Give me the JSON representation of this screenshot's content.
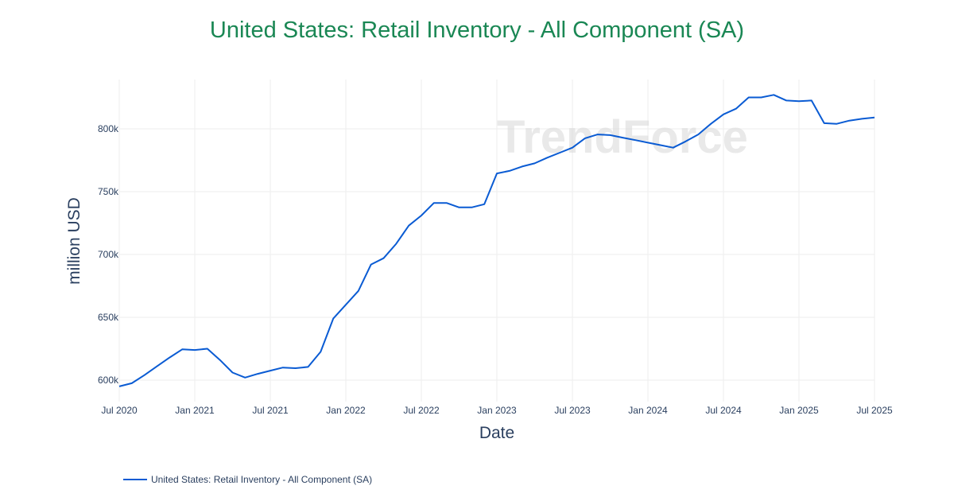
{
  "title": "United States: Retail Inventory - All Component (SA)",
  "y_axis_title": "million USD",
  "x_axis_title": "Date",
  "watermark": "TrendForce",
  "legend": {
    "label": "United States: Retail Inventory - All Component (SA)",
    "color": "#0a5bd3"
  },
  "colors": {
    "title": "#1a8754",
    "line": "#0a5bd3",
    "axis_text": "#2a3f5f",
    "grid": "#eeeeee"
  },
  "chart_data": {
    "type": "line",
    "title": "United States: Retail Inventory - All Component (SA)",
    "xlabel": "Date",
    "ylabel": "million USD",
    "x_tick_labels": [
      "Jul 2020",
      "Jan 2021",
      "Jul 2021",
      "Jan 2022",
      "Jul 2022",
      "Jan 2023",
      "Jul 2023",
      "Jan 2024",
      "Jul 2024",
      "Jan 2025",
      "Jul 2025"
    ],
    "y_tick_labels": [
      "600k",
      "650k",
      "700k",
      "750k",
      "800k"
    ],
    "ylim": [
      585000,
      840000
    ],
    "grid": true,
    "legend_position": "bottom-left",
    "series": [
      {
        "name": "United States: Retail Inventory - All Component (SA)",
        "x": [
          "2020-07",
          "2020-08",
          "2020-09",
          "2020-10",
          "2020-11",
          "2020-12",
          "2021-01",
          "2021-02",
          "2021-03",
          "2021-04",
          "2021-05",
          "2021-06",
          "2021-07",
          "2021-08",
          "2021-09",
          "2021-10",
          "2021-11",
          "2021-12",
          "2022-01",
          "2022-02",
          "2022-03",
          "2022-04",
          "2022-05",
          "2022-06",
          "2022-07",
          "2022-08",
          "2022-09",
          "2022-10",
          "2022-11",
          "2022-12",
          "2023-01",
          "2023-02",
          "2023-03",
          "2023-04",
          "2023-05",
          "2023-06",
          "2023-07",
          "2023-08",
          "2023-09",
          "2023-10",
          "2023-11",
          "2023-12",
          "2024-01",
          "2024-02",
          "2024-03",
          "2024-04",
          "2024-05",
          "2024-06",
          "2024-07",
          "2024-08",
          "2024-09",
          "2024-10",
          "2024-11",
          "2024-12",
          "2025-01",
          "2025-02",
          "2025-03",
          "2025-04",
          "2025-05",
          "2025-06",
          "2025-07"
        ],
        "values": [
          595000,
          597500,
          604000,
          611000,
          618000,
          624500,
          624000,
          625000,
          616000,
          606000,
          602000,
          605000,
          607500,
          610000,
          609500,
          610500,
          622500,
          649000,
          660000,
          671000,
          692000,
          697000,
          708500,
          723000,
          731000,
          741000,
          741000,
          737500,
          737500,
          740000,
          764500,
          766500,
          770000,
          772500,
          777000,
          781000,
          785000,
          792500,
          795500,
          795000,
          793000,
          791000,
          789000,
          787000,
          785000,
          790000,
          795500,
          804000,
          811500,
          816000,
          825000,
          825000,
          827000,
          822500,
          822000,
          822500,
          804500,
          804000,
          806500,
          808000,
          809000
        ]
      }
    ]
  }
}
